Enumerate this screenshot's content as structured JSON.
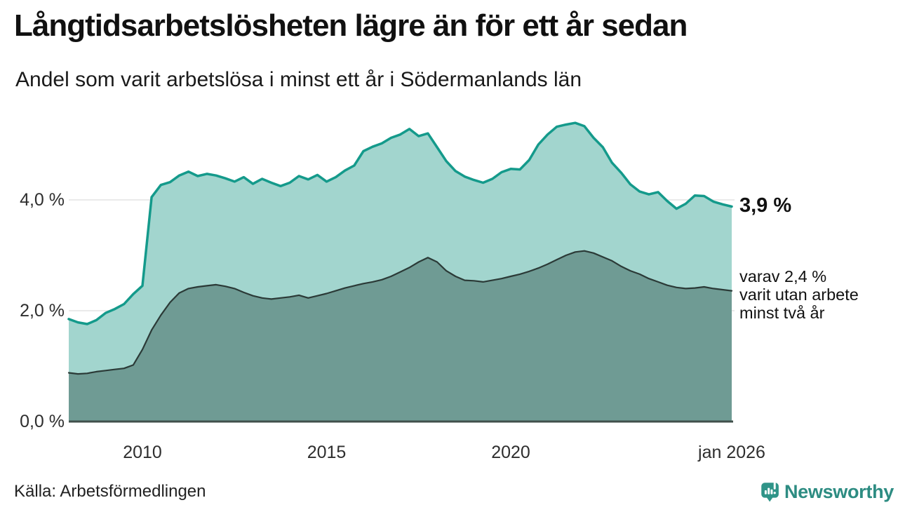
{
  "header": {
    "title": "Långtidsarbetslösheten lägre än för ett år sedan",
    "subtitle": "Andel som varit arbetslösa i minst ett år i Södermanlands län"
  },
  "chart_data": {
    "type": "area",
    "title": "Långtidsarbetslösheten lägre än för ett år sedan",
    "subtitle": "Andel som varit arbetslösa i minst ett år i Södermanlands län",
    "unit": "%",
    "x_domain": [
      2008,
      2026
    ],
    "y_domain": [
      0,
      6
    ],
    "grid": true,
    "y_ticks": [
      {
        "label": "0,0 %",
        "value": 0
      },
      {
        "label": "2,0 %",
        "value": 2
      },
      {
        "label": "4,0 %",
        "value": 4
      }
    ],
    "x_ticks": [
      {
        "label": "2010",
        "value": 2010
      },
      {
        "label": "2015",
        "value": 2015
      },
      {
        "label": "2020",
        "value": 2020
      },
      {
        "label": "jan 2026",
        "value": 2026
      }
    ],
    "series": [
      {
        "id": "minst-ett-ar",
        "name": "Andel arbetslösa minst ett år",
        "last_value": 3.9,
        "color": "#149a8b",
        "fill": "#a2d5ce",
        "stroke_width": 3.5,
        "points": [
          [
            2008.0,
            1.85
          ],
          [
            2008.25,
            1.79
          ],
          [
            2008.5,
            1.76
          ],
          [
            2008.75,
            1.83
          ],
          [
            2009.0,
            1.96
          ],
          [
            2009.25,
            2.03
          ],
          [
            2009.5,
            2.12
          ],
          [
            2009.75,
            2.3
          ],
          [
            2010.0,
            2.45
          ],
          [
            2010.25,
            4.05
          ],
          [
            2010.5,
            4.27
          ],
          [
            2010.75,
            4.32
          ],
          [
            2011.0,
            4.44
          ],
          [
            2011.25,
            4.51
          ],
          [
            2011.5,
            4.43
          ],
          [
            2011.75,
            4.47
          ],
          [
            2012.0,
            4.44
          ],
          [
            2012.25,
            4.39
          ],
          [
            2012.5,
            4.33
          ],
          [
            2012.75,
            4.41
          ],
          [
            2013.0,
            4.29
          ],
          [
            2013.25,
            4.38
          ],
          [
            2013.5,
            4.31
          ],
          [
            2013.75,
            4.25
          ],
          [
            2014.0,
            4.31
          ],
          [
            2014.25,
            4.43
          ],
          [
            2014.5,
            4.37
          ],
          [
            2014.75,
            4.45
          ],
          [
            2015.0,
            4.33
          ],
          [
            2015.25,
            4.41
          ],
          [
            2015.5,
            4.53
          ],
          [
            2015.75,
            4.62
          ],
          [
            2016.0,
            4.88
          ],
          [
            2016.25,
            4.96
          ],
          [
            2016.5,
            5.02
          ],
          [
            2016.75,
            5.12
          ],
          [
            2017.0,
            5.18
          ],
          [
            2017.25,
            5.28
          ],
          [
            2017.5,
            5.15
          ],
          [
            2017.75,
            5.2
          ],
          [
            2018.0,
            4.95
          ],
          [
            2018.25,
            4.7
          ],
          [
            2018.5,
            4.52
          ],
          [
            2018.75,
            4.42
          ],
          [
            2019.0,
            4.36
          ],
          [
            2019.25,
            4.31
          ],
          [
            2019.5,
            4.38
          ],
          [
            2019.75,
            4.5
          ],
          [
            2020.0,
            4.56
          ],
          [
            2020.25,
            4.55
          ],
          [
            2020.5,
            4.72
          ],
          [
            2020.75,
            5.0
          ],
          [
            2021.0,
            5.18
          ],
          [
            2021.25,
            5.32
          ],
          [
            2021.5,
            5.36
          ],
          [
            2021.75,
            5.39
          ],
          [
            2022.0,
            5.33
          ],
          [
            2022.25,
            5.12
          ],
          [
            2022.5,
            4.95
          ],
          [
            2022.75,
            4.67
          ],
          [
            2023.0,
            4.49
          ],
          [
            2023.25,
            4.28
          ],
          [
            2023.5,
            4.15
          ],
          [
            2023.75,
            4.1
          ],
          [
            2024.0,
            4.14
          ],
          [
            2024.25,
            3.98
          ],
          [
            2024.5,
            3.84
          ],
          [
            2024.75,
            3.93
          ],
          [
            2025.0,
            4.08
          ],
          [
            2025.25,
            4.07
          ],
          [
            2025.5,
            3.97
          ],
          [
            2025.75,
            3.92
          ],
          [
            2026.0,
            3.88
          ]
        ]
      },
      {
        "id": "minst-tva-ar",
        "name": "Varav utan arbete minst två år",
        "last_value": 2.4,
        "color": "#2b3a37",
        "fill": "#6f9b94",
        "stroke_width": 2.2,
        "points": [
          [
            2008.0,
            0.88
          ],
          [
            2008.25,
            0.86
          ],
          [
            2008.5,
            0.87
          ],
          [
            2008.75,
            0.9
          ],
          [
            2009.0,
            0.92
          ],
          [
            2009.25,
            0.94
          ],
          [
            2009.5,
            0.96
          ],
          [
            2009.75,
            1.02
          ],
          [
            2010.0,
            1.3
          ],
          [
            2010.25,
            1.65
          ],
          [
            2010.5,
            1.92
          ],
          [
            2010.75,
            2.15
          ],
          [
            2011.0,
            2.32
          ],
          [
            2011.25,
            2.4
          ],
          [
            2011.5,
            2.43
          ],
          [
            2011.75,
            2.45
          ],
          [
            2012.0,
            2.47
          ],
          [
            2012.25,
            2.44
          ],
          [
            2012.5,
            2.4
          ],
          [
            2012.75,
            2.33
          ],
          [
            2013.0,
            2.27
          ],
          [
            2013.25,
            2.23
          ],
          [
            2013.5,
            2.21
          ],
          [
            2013.75,
            2.23
          ],
          [
            2014.0,
            2.25
          ],
          [
            2014.25,
            2.28
          ],
          [
            2014.5,
            2.23
          ],
          [
            2014.75,
            2.27
          ],
          [
            2015.0,
            2.31
          ],
          [
            2015.25,
            2.36
          ],
          [
            2015.5,
            2.41
          ],
          [
            2015.75,
            2.45
          ],
          [
            2016.0,
            2.49
          ],
          [
            2016.25,
            2.52
          ],
          [
            2016.5,
            2.56
          ],
          [
            2016.75,
            2.62
          ],
          [
            2017.0,
            2.7
          ],
          [
            2017.25,
            2.78
          ],
          [
            2017.5,
            2.88
          ],
          [
            2017.75,
            2.96
          ],
          [
            2018.0,
            2.88
          ],
          [
            2018.25,
            2.72
          ],
          [
            2018.5,
            2.62
          ],
          [
            2018.75,
            2.55
          ],
          [
            2019.0,
            2.54
          ],
          [
            2019.25,
            2.52
          ],
          [
            2019.5,
            2.55
          ],
          [
            2019.75,
            2.58
          ],
          [
            2020.0,
            2.62
          ],
          [
            2020.25,
            2.66
          ],
          [
            2020.5,
            2.71
          ],
          [
            2020.75,
            2.77
          ],
          [
            2021.0,
            2.84
          ],
          [
            2021.25,
            2.92
          ],
          [
            2021.5,
            3.0
          ],
          [
            2021.75,
            3.06
          ],
          [
            2022.0,
            3.08
          ],
          [
            2022.25,
            3.04
          ],
          [
            2022.5,
            2.97
          ],
          [
            2022.75,
            2.9
          ],
          [
            2023.0,
            2.8
          ],
          [
            2023.25,
            2.72
          ],
          [
            2023.5,
            2.66
          ],
          [
            2023.75,
            2.58
          ],
          [
            2024.0,
            2.52
          ],
          [
            2024.25,
            2.46
          ],
          [
            2024.5,
            2.42
          ],
          [
            2024.75,
            2.4
          ],
          [
            2025.0,
            2.41
          ],
          [
            2025.25,
            2.43
          ],
          [
            2025.5,
            2.4
          ],
          [
            2025.75,
            2.38
          ],
          [
            2026.0,
            2.36
          ]
        ]
      }
    ],
    "annotations": {
      "total_label": "3,9 %",
      "subset_line1": "varav 2,4 %",
      "subset_line2": "varit utan arbete",
      "subset_line3": "minst två år"
    },
    "colors": {
      "gridline": "#e4e4e4",
      "baseline": "#41504b",
      "brand_teal": "#2d8c82"
    },
    "legend_position": "right-annotations"
  },
  "footer": {
    "source": "Källa: Arbetsförmedlingen",
    "brand": "Newsworthy"
  }
}
